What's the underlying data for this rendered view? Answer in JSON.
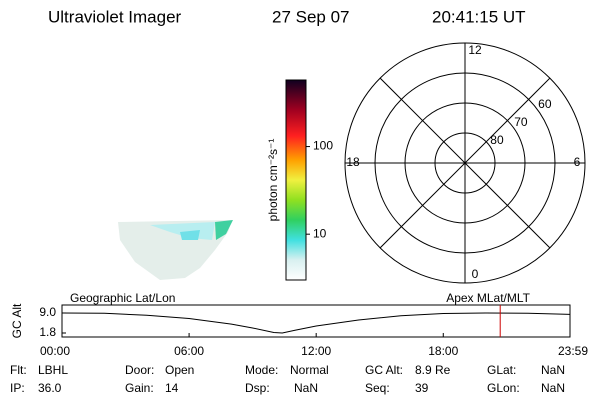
{
  "header": {
    "title": "Ultraviolet Imager",
    "date": "27 Sep 07",
    "time": "20:41:15 UT"
  },
  "colorbar": {
    "label": "photon cm⁻²s⁻¹",
    "log": true,
    "clim": [
      3,
      575
    ],
    "ticks": [
      10,
      100
    ]
  },
  "polar": {
    "rlim": [
      90,
      50
    ],
    "lat_ticks": [
      80,
      70,
      60
    ],
    "mlt_ticks": [
      12,
      6,
      0,
      18
    ]
  },
  "altitude_plot": {
    "ylabel": "GC Alt",
    "left_label": "Geographic Lat/Lon",
    "right_label": "Apex MLat/MLT",
    "xlim": [
      0,
      23.983
    ],
    "ylim": [
      0.36,
      11.88
    ],
    "yticks": [
      {
        "value": 9,
        "label": "9.0"
      },
      {
        "value": 1.8,
        "label": "1.8"
      }
    ],
    "xticks": [
      {
        "value": 0,
        "label": "00:00"
      },
      {
        "value": 6,
        "label": "06:00"
      },
      {
        "value": 12,
        "label": "12:00"
      },
      {
        "value": 18,
        "label": "18:00"
      },
      {
        "value": 23.983,
        "label": "23:59"
      }
    ],
    "x": [
      0,
      2,
      4,
      6,
      8,
      9,
      10,
      10.4,
      11,
      12,
      14,
      16,
      18,
      20,
      22,
      23.983
    ],
    "values": [
      9.0,
      8.9,
      8.2,
      7.0,
      5.0,
      3.6,
      2.0,
      1.8,
      2.8,
      4.3,
      6.5,
      8.0,
      8.8,
      9.0,
      8.9,
      8.5
    ],
    "color": "#000000",
    "marker_time": 20.6875,
    "marker_color": "#cc0000"
  },
  "status": {
    "rows": [
      [
        {
          "label": "Flt:",
          "value": "LBHL"
        },
        {
          "label": "Door:",
          "value": "Open"
        },
        {
          "label": "Mode:",
          "value": "Normal"
        },
        {
          "label": "GC Alt:",
          "value": "8.9 Re"
        },
        {
          "label": "GLat:",
          "value": "NaN"
        }
      ],
      [
        {
          "label": "IP:",
          "value": "36.0"
        },
        {
          "label": "Gain:",
          "value": "14"
        },
        {
          "label": "Dsp:",
          "value": "NaN"
        },
        {
          "label": "Seq:",
          "value": "39"
        },
        {
          "label": "GLon:",
          "value": "NaN"
        }
      ]
    ]
  }
}
